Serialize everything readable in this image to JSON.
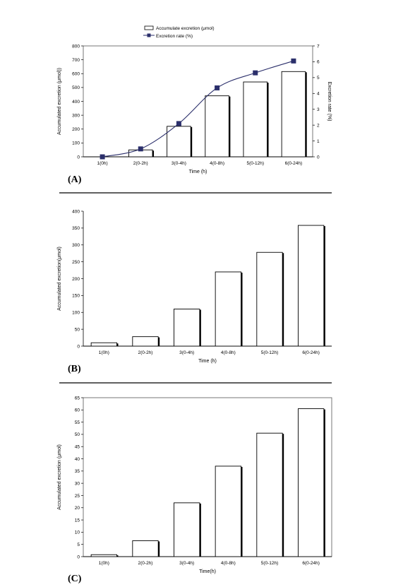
{
  "chart_data": [
    {
      "type": "bar",
      "panel_label": "(A)",
      "categories": [
        "1(0h)",
        "2(0-2h)",
        "3(0-4h)",
        "4(0-8h)",
        "5(0-12h)",
        "6(0-24h)"
      ],
      "xlabel": "Time (h)",
      "ylabel": "Accumulated excretion (μmol))",
      "y2label": "Excretion rate (%)",
      "ylim": [
        0,
        800
      ],
      "y2lim": [
        0,
        7
      ],
      "yticks": [
        "0",
        "100",
        "200",
        "300",
        "400",
        "500",
        "600",
        "700",
        "800"
      ],
      "y2ticks": [
        "0",
        "1",
        "2",
        "3",
        "4",
        "5",
        "6",
        "7"
      ],
      "legend": [
        "Accumulate excretion (μmol)",
        "Excretion rate (%)"
      ],
      "legend_position": "top-center",
      "series": [
        {
          "name": "Accumulate excretion (μmol)",
          "kind": "bar",
          "axis": "left",
          "values": [
            0,
            50,
            220,
            440,
            540,
            615
          ]
        },
        {
          "name": "Excretion rate (%)",
          "kind": "line",
          "axis": "right",
          "values": [
            0,
            0.5,
            2.1,
            4.35,
            5.3,
            6.05
          ]
        }
      ],
      "colors": {
        "line": "#2b2f6b",
        "bar_fill": "#ffffff",
        "bar_edge": "#000000"
      }
    },
    {
      "type": "bar",
      "panel_label": "(B)",
      "categories": [
        "1(0h)",
        "2(0-2h)",
        "3(0-4h)",
        "4(0-8h)",
        "5(0-12h)",
        "6(0-24h)"
      ],
      "xlabel": "Time (h)",
      "ylabel": "Accumulated excretion(μmol)",
      "ylim": [
        0,
        400
      ],
      "yticks": [
        "0",
        "50",
        "100",
        "150",
        "200",
        "250",
        "300",
        "350",
        "400"
      ],
      "values": [
        10,
        28,
        110,
        220,
        278,
        358
      ]
    },
    {
      "type": "bar",
      "panel_label": "(C)",
      "categories": [
        "1(0h)",
        "2(0-2h)",
        "3(0-4h)",
        "4(0-8h)",
        "5(0-12h)",
        "6(0-24h)"
      ],
      "xlabel": "Time(h)",
      "ylabel": "Accumulated excretion (μmol)",
      "ylim": [
        0,
        65
      ],
      "yticks": [
        "0",
        "5",
        "10",
        "15",
        "20",
        "25",
        "30",
        "35",
        "40",
        "45",
        "50",
        "55",
        "60",
        "65"
      ],
      "values": [
        0.8,
        6.5,
        22,
        37,
        50.5,
        60.5
      ]
    }
  ]
}
